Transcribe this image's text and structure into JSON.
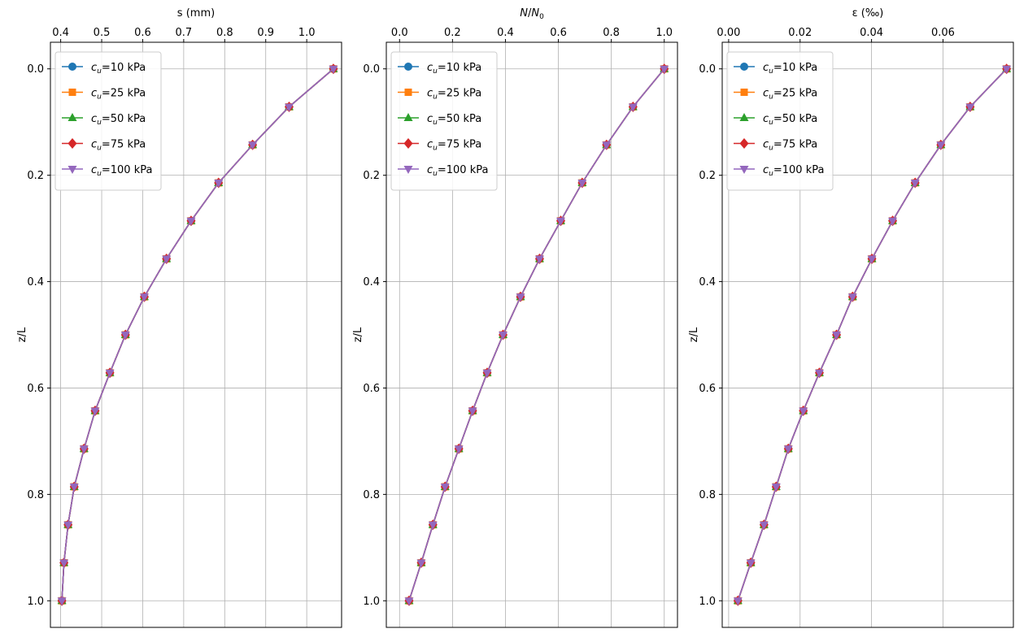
{
  "chart_data": [
    {
      "type": "line",
      "xlabel": "s (mm)",
      "ylabel": "z/L",
      "xlim": [
        0.375,
        1.085
      ],
      "ylim": [
        -0.05,
        1.05
      ],
      "y_inverted": true,
      "xticks": [
        0.4,
        0.5,
        0.6,
        0.7,
        0.8,
        0.9,
        1.0
      ],
      "xtick_labels": [
        "0.4",
        "0.5",
        "0.6",
        "0.7",
        "0.8",
        "0.9",
        "1.0"
      ],
      "yticks": [
        0.0,
        0.2,
        0.4,
        0.6,
        0.8,
        1.0
      ],
      "ytick_labels": [
        "0.0",
        "0.2",
        "0.4",
        "0.6",
        "0.8",
        "1.0"
      ],
      "xaxis_position": "top",
      "grid": true,
      "legend_position": "top-left",
      "z": [
        0.0,
        0.0714,
        0.1429,
        0.2143,
        0.2857,
        0.3571,
        0.4286,
        0.5,
        0.5714,
        0.6429,
        0.7143,
        0.7857,
        0.8571,
        0.9286,
        1.0
      ],
      "series": [
        {
          "name": "c_u=10 kPa",
          "values": [
            1.065,
            0.957,
            0.868,
            0.785,
            0.718,
            0.658,
            0.604,
            0.558,
            0.52,
            0.484,
            0.457,
            0.433,
            0.418,
            0.408,
            0.403
          ]
        },
        {
          "name": "c_u=25 kPa",
          "values": [
            1.065,
            0.957,
            0.868,
            0.785,
            0.718,
            0.658,
            0.604,
            0.558,
            0.52,
            0.484,
            0.457,
            0.433,
            0.418,
            0.408,
            0.403
          ]
        },
        {
          "name": "c_u=50 kPa",
          "values": [
            1.065,
            0.957,
            0.868,
            0.785,
            0.718,
            0.658,
            0.604,
            0.558,
            0.52,
            0.484,
            0.457,
            0.433,
            0.418,
            0.408,
            0.403
          ]
        },
        {
          "name": "c_u=75 kPa",
          "values": [
            1.065,
            0.957,
            0.868,
            0.785,
            0.718,
            0.658,
            0.604,
            0.558,
            0.52,
            0.484,
            0.457,
            0.433,
            0.418,
            0.408,
            0.403
          ]
        },
        {
          "name": "c_u=100 kPa",
          "values": [
            1.065,
            0.957,
            0.868,
            0.785,
            0.718,
            0.658,
            0.604,
            0.558,
            0.52,
            0.484,
            0.457,
            0.433,
            0.418,
            0.408,
            0.403
          ]
        }
      ]
    },
    {
      "type": "line",
      "xlabel": "N/N0",
      "ylabel": "z/L",
      "xlim": [
        -0.05,
        1.05
      ],
      "ylim": [
        -0.05,
        1.05
      ],
      "y_inverted": true,
      "xticks": [
        0.0,
        0.2,
        0.4,
        0.6,
        0.8,
        1.0
      ],
      "xtick_labels": [
        "0.0",
        "0.2",
        "0.4",
        "0.6",
        "0.8",
        "1.0"
      ],
      "yticks": [
        0.0,
        0.2,
        0.4,
        0.6,
        0.8,
        1.0
      ],
      "ytick_labels": [
        "0.0",
        "0.2",
        "0.4",
        "0.6",
        "0.8",
        "1.0"
      ],
      "xaxis_position": "top",
      "grid": true,
      "legend_position": "top-left",
      "z": [
        0.0,
        0.0714,
        0.1429,
        0.2143,
        0.2857,
        0.3571,
        0.4286,
        0.5,
        0.5714,
        0.6429,
        0.7143,
        0.7857,
        0.8571,
        0.9286,
        1.0
      ],
      "series": [
        {
          "name": "c_u=10 kPa",
          "values": [
            1.0,
            0.882,
            0.782,
            0.69,
            0.609,
            0.529,
            0.457,
            0.391,
            0.331,
            0.276,
            0.224,
            0.172,
            0.126,
            0.082,
            0.036
          ]
        },
        {
          "name": "c_u=25 kPa",
          "values": [
            1.0,
            0.882,
            0.782,
            0.69,
            0.609,
            0.529,
            0.457,
            0.391,
            0.331,
            0.276,
            0.224,
            0.172,
            0.126,
            0.082,
            0.036
          ]
        },
        {
          "name": "c_u=50 kPa",
          "values": [
            1.0,
            0.882,
            0.782,
            0.69,
            0.609,
            0.529,
            0.457,
            0.391,
            0.331,
            0.276,
            0.224,
            0.172,
            0.126,
            0.082,
            0.036
          ]
        },
        {
          "name": "c_u=75 kPa",
          "values": [
            1.0,
            0.882,
            0.782,
            0.69,
            0.609,
            0.529,
            0.457,
            0.391,
            0.331,
            0.276,
            0.224,
            0.172,
            0.126,
            0.082,
            0.036
          ]
        },
        {
          "name": "c_u=100 kPa",
          "values": [
            1.0,
            0.882,
            0.782,
            0.69,
            0.609,
            0.529,
            0.457,
            0.391,
            0.331,
            0.276,
            0.224,
            0.172,
            0.126,
            0.082,
            0.036
          ]
        }
      ]
    },
    {
      "type": "line",
      "xlabel": "ε (‰)",
      "ylabel": "z/L",
      "xlim": [
        -0.0018,
        0.0797
      ],
      "ylim": [
        -0.05,
        1.05
      ],
      "y_inverted": true,
      "xticks": [
        0.0,
        0.02,
        0.04,
        0.06
      ],
      "xtick_labels": [
        "0.00",
        "0.02",
        "0.04",
        "0.06"
      ],
      "yticks": [
        0.0,
        0.2,
        0.4,
        0.6,
        0.8,
        1.0
      ],
      "ytick_labels": [
        "0.0",
        "0.2",
        "0.4",
        "0.6",
        "0.8",
        "1.0"
      ],
      "xaxis_position": "top",
      "grid": true,
      "legend_position": "top-left",
      "z": [
        0.0,
        0.0714,
        0.1429,
        0.2143,
        0.2857,
        0.3571,
        0.4286,
        0.5,
        0.5714,
        0.6429,
        0.7143,
        0.7857,
        0.8571,
        0.9286,
        1.0
      ],
      "series": [
        {
          "name": "c_u=10 kPa",
          "values": [
            0.0778,
            0.0676,
            0.0594,
            0.0522,
            0.0459,
            0.0401,
            0.0347,
            0.0302,
            0.0254,
            0.0209,
            0.0167,
            0.0133,
            0.0099,
            0.0062,
            0.0026
          ]
        },
        {
          "name": "c_u=25 kPa",
          "values": [
            0.0778,
            0.0676,
            0.0594,
            0.0522,
            0.0459,
            0.0401,
            0.0347,
            0.0302,
            0.0254,
            0.0209,
            0.0167,
            0.0133,
            0.0099,
            0.0062,
            0.0026
          ]
        },
        {
          "name": "c_u=50 kPa",
          "values": [
            0.0778,
            0.0676,
            0.0594,
            0.0522,
            0.0459,
            0.0401,
            0.0347,
            0.0302,
            0.0254,
            0.0209,
            0.0167,
            0.0133,
            0.0099,
            0.0062,
            0.0026
          ]
        },
        {
          "name": "c_u=75 kPa",
          "values": [
            0.0778,
            0.0676,
            0.0594,
            0.0522,
            0.0459,
            0.0401,
            0.0347,
            0.0302,
            0.0254,
            0.0209,
            0.0167,
            0.0133,
            0.0099,
            0.0062,
            0.0026
          ]
        },
        {
          "name": "c_u=100 kPa",
          "values": [
            0.0778,
            0.0676,
            0.0594,
            0.0522,
            0.0459,
            0.0401,
            0.0347,
            0.0302,
            0.0254,
            0.0209,
            0.0167,
            0.0133,
            0.0099,
            0.0062,
            0.0026
          ]
        }
      ]
    }
  ],
  "legend": [
    {
      "symbol": "c",
      "subscript": "u",
      "suffix": "=10 kPa",
      "marker": "circle",
      "color": "#1f77b4"
    },
    {
      "symbol": "c",
      "subscript": "u",
      "suffix": "=25 kPa",
      "marker": "square",
      "color": "#ff7f0e"
    },
    {
      "symbol": "c",
      "subscript": "u",
      "suffix": "=50 kPa",
      "marker": "triangle-up",
      "color": "#2ca02c"
    },
    {
      "symbol": "c",
      "subscript": "u",
      "suffix": "=75 kPa",
      "marker": "diamond",
      "color": "#d62728"
    },
    {
      "symbol": "c",
      "subscript": "u",
      "suffix": "=100 kPa",
      "marker": "triangle-down",
      "color": "#9467bd"
    }
  ],
  "xlabel_parts": {
    "n_main": "N",
    "n_slash": "/",
    "n_denominator": "N",
    "n_sub": "0"
  }
}
